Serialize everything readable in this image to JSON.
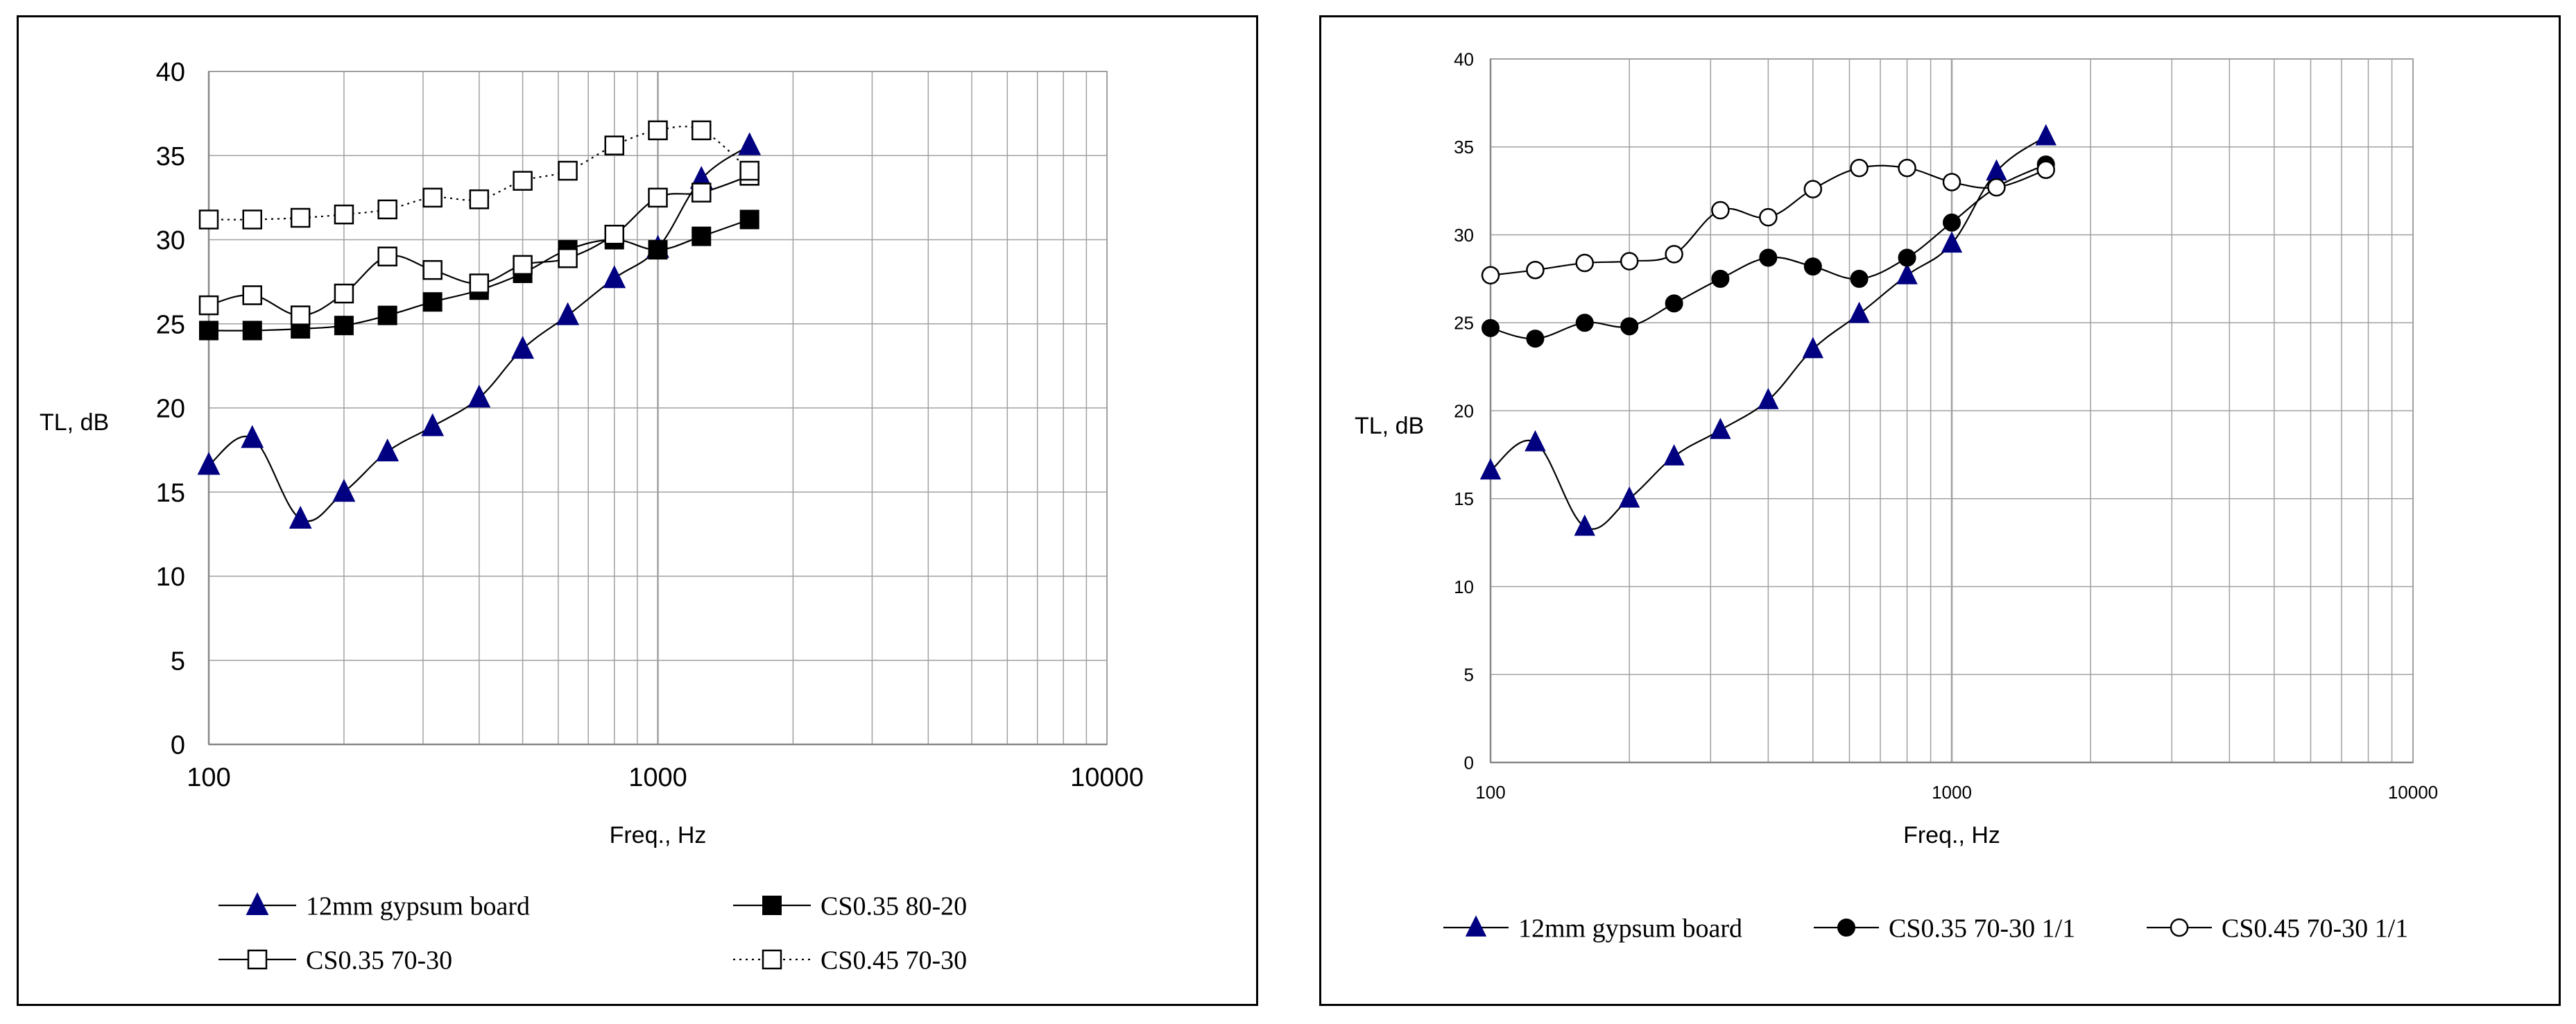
{
  "chart_data": [
    {
      "type": "line",
      "xscale": "log",
      "xlim": [
        100,
        10000
      ],
      "ylim": [
        0,
        40
      ],
      "xlabel": "Freq., Hz",
      "ylabel": "TL, dB",
      "xticks": [
        "100",
        "1000",
        "10000"
      ],
      "yticks": [
        "0",
        "5",
        "10",
        "15",
        "20",
        "25",
        "30",
        "35",
        "40"
      ],
      "grid": true,
      "legend": "bottom",
      "x": [
        100,
        125,
        160,
        200,
        250,
        315,
        400,
        500,
        630,
        800,
        1000,
        1250,
        1600
      ],
      "series": [
        {
          "name": "12mm gypsum board",
          "marker": "triangle-filled",
          "line": "solid",
          "values": [
            16.6,
            18.2,
            13.4,
            15.0,
            17.4,
            18.9,
            20.6,
            23.5,
            25.5,
            27.7,
            29.5,
            33.6,
            35.6
          ]
        },
        {
          "name": "CS0.35 80-20",
          "marker": "square-filled",
          "line": "solid",
          "values": [
            24.6,
            24.6,
            24.7,
            24.9,
            25.5,
            26.3,
            27.0,
            28.0,
            29.4,
            30.0,
            29.4,
            30.2,
            31.2
          ]
        },
        {
          "name": "CS0.35 70-30",
          "marker": "square-open",
          "line": "solid",
          "values": [
            26.1,
            26.7,
            25.5,
            26.8,
            29.0,
            28.2,
            27.4,
            28.5,
            28.9,
            30.3,
            32.5,
            32.8,
            33.8
          ]
        },
        {
          "name": "CS0.45 70-30",
          "marker": "square-open",
          "line": "dotted",
          "values": [
            31.2,
            31.2,
            31.3,
            31.5,
            31.8,
            32.5,
            32.4,
            33.5,
            34.1,
            35.6,
            36.5,
            36.5,
            34.1
          ]
        }
      ]
    },
    {
      "type": "line",
      "xscale": "log",
      "xlim": [
        100,
        10000
      ],
      "ylim": [
        0,
        40
      ],
      "xlabel": "Freq., Hz",
      "ylabel": "TL, dB",
      "xticks": [
        "100",
        "1000",
        "10000"
      ],
      "yticks": [
        "0",
        "5",
        "10",
        "15",
        "20",
        "25",
        "30",
        "35",
        "40"
      ],
      "grid": true,
      "legend": "bottom",
      "x": [
        100,
        125,
        160,
        200,
        250,
        315,
        400,
        500,
        630,
        800,
        1000,
        1250,
        1600
      ],
      "series": [
        {
          "name": "12mm gypsum board",
          "marker": "triangle-filled",
          "line": "solid",
          "values": [
            16.6,
            18.2,
            13.4,
            15.0,
            17.4,
            18.9,
            20.6,
            23.5,
            25.5,
            27.7,
            29.5,
            33.6,
            35.6
          ]
        },
        {
          "name": "CS0.35 70-30 1/1",
          "marker": "circle-filled",
          "line": "solid",
          "values": [
            24.7,
            24.1,
            25.0,
            24.8,
            26.1,
            27.5,
            28.7,
            28.2,
            27.5,
            28.7,
            30.7,
            32.7,
            34.0
          ]
        },
        {
          "name": "CS0.45 70-30 1/1",
          "marker": "circle-open",
          "line": "solid",
          "values": [
            27.7,
            28.0,
            28.4,
            28.5,
            28.9,
            31.4,
            31.0,
            32.6,
            33.8,
            33.8,
            33.0,
            32.7,
            33.7
          ]
        }
      ]
    }
  ],
  "colors": {
    "triangle": "#000080",
    "line": "#000000",
    "grid": "#a0a0a0"
  }
}
